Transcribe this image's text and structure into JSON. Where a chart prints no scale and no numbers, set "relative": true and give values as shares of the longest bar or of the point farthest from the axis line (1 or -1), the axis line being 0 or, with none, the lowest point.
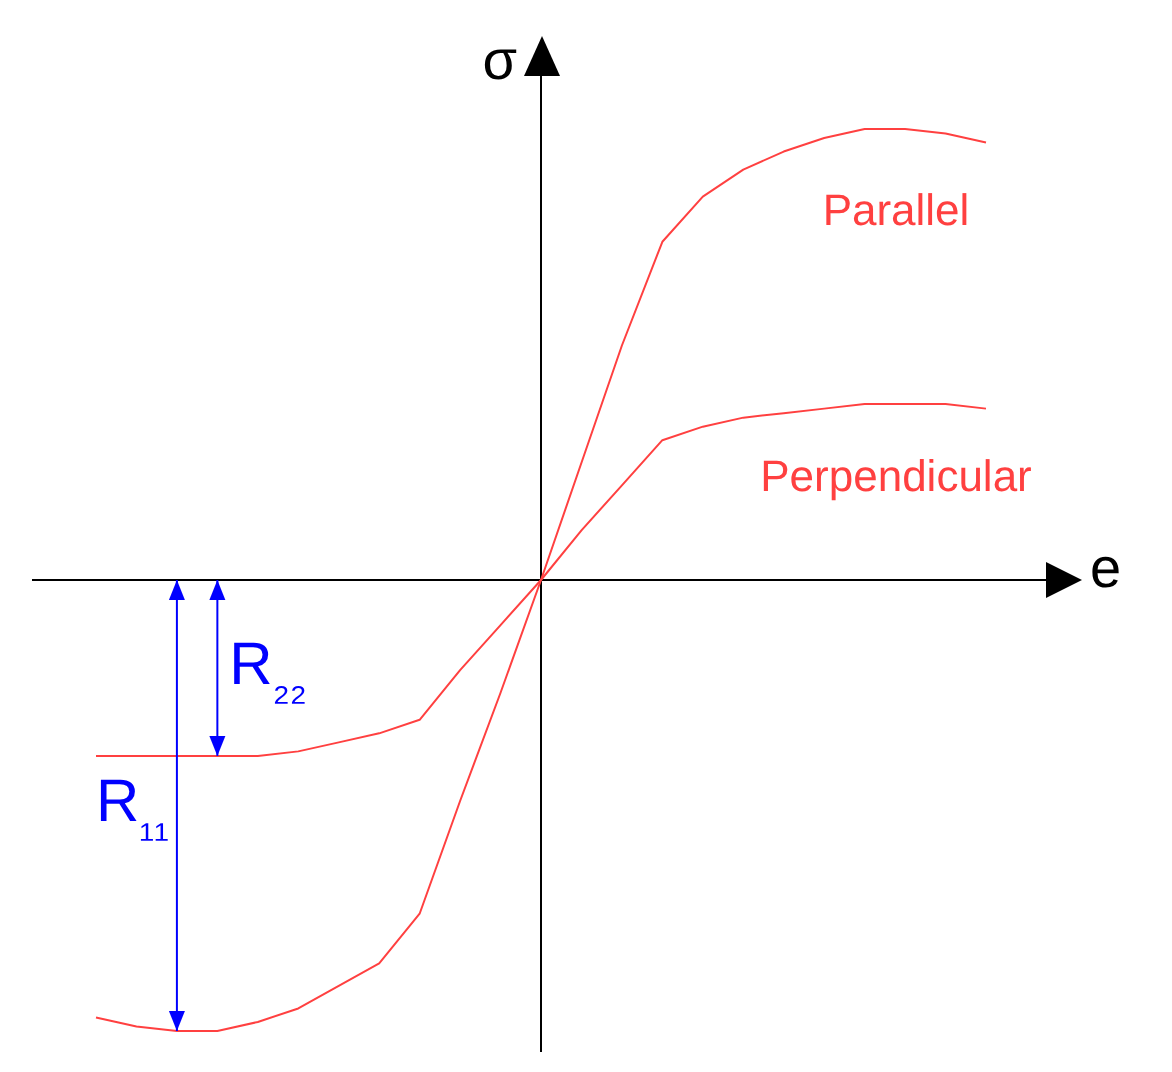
{
  "chart_data": {
    "type": "line",
    "relative": true,
    "xlabel": "e",
    "ylabel": "σ",
    "legend": false,
    "grid": false,
    "marker": "none",
    "line_style": "solid",
    "categories": [
      null,
      null,
      null,
      null,
      null,
      null,
      null,
      null,
      null,
      null,
      null,
      null,
      null,
      null,
      null,
      null,
      null,
      null,
      null,
      null,
      null,
      null,
      null
    ],
    "series": [
      {
        "name": "Parallel",
        "color": "#ff4040",
        "values": [
          -0.97,
          -0.99,
          -1,
          -1,
          -0.98,
          -0.95,
          -0.9,
          -0.85,
          -0.74,
          -0.49,
          -0.25,
          0,
          0.26,
          0.52,
          0.75,
          0.85,
          0.91,
          0.95,
          0.98,
          1,
          1,
          0.99,
          0.97
        ]
      },
      {
        "name": "Perpendicular",
        "color": "#ff4040",
        "values": [
          -0.39,
          -0.39,
          -0.39,
          -0.39,
          -0.39,
          -0.38,
          -0.36,
          -0.34,
          -0.31,
          -0.2,
          -0.1,
          0,
          0.11,
          0.21,
          0.31,
          0.34,
          0.36,
          0.37,
          0.38,
          0.39,
          0.39,
          0.39,
          0.38
        ]
      }
    ],
    "annotations": [
      "R₂₂",
      "R₁₁"
    ]
  }
}
